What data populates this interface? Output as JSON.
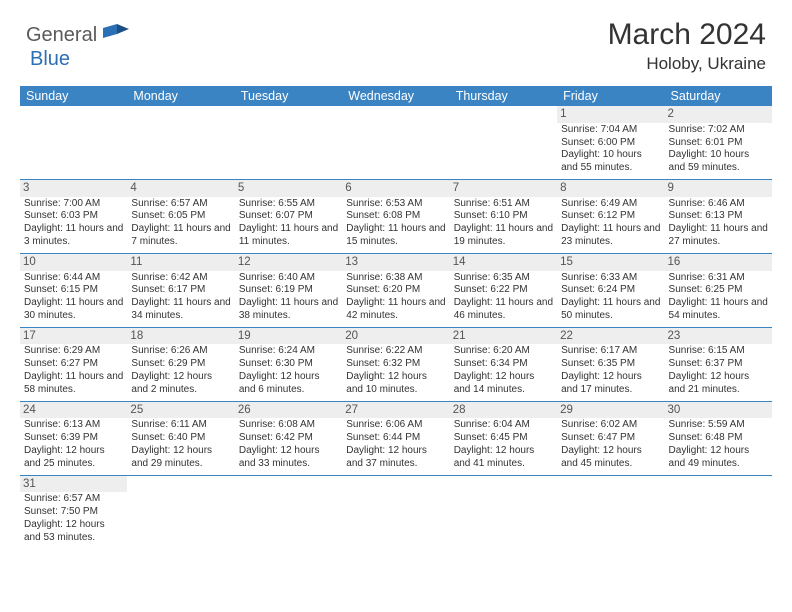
{
  "brand": {
    "part1": "General",
    "part2": "Blue"
  },
  "title": "March 2024",
  "location": "Holoby, Ukraine",
  "colors": {
    "header_bg": "#3b84c4",
    "header_text": "#ffffff",
    "daynum_bg": "#eeeeee",
    "row_border": "#3b84c4",
    "brand_gray": "#5a5a5a",
    "brand_blue": "#2b6fb5",
    "page_bg": "#ffffff",
    "text": "#333333"
  },
  "day_headers": [
    "Sunday",
    "Monday",
    "Tuesday",
    "Wednesday",
    "Thursday",
    "Friday",
    "Saturday"
  ],
  "weeks": [
    [
      {
        "n": "",
        "sr": "",
        "ss": "",
        "dl": ""
      },
      {
        "n": "",
        "sr": "",
        "ss": "",
        "dl": ""
      },
      {
        "n": "",
        "sr": "",
        "ss": "",
        "dl": ""
      },
      {
        "n": "",
        "sr": "",
        "ss": "",
        "dl": ""
      },
      {
        "n": "",
        "sr": "",
        "ss": "",
        "dl": ""
      },
      {
        "n": "1",
        "sr": "Sunrise: 7:04 AM",
        "ss": "Sunset: 6:00 PM",
        "dl": "Daylight: 10 hours and 55 minutes."
      },
      {
        "n": "2",
        "sr": "Sunrise: 7:02 AM",
        "ss": "Sunset: 6:01 PM",
        "dl": "Daylight: 10 hours and 59 minutes."
      }
    ],
    [
      {
        "n": "3",
        "sr": "Sunrise: 7:00 AM",
        "ss": "Sunset: 6:03 PM",
        "dl": "Daylight: 11 hours and 3 minutes."
      },
      {
        "n": "4",
        "sr": "Sunrise: 6:57 AM",
        "ss": "Sunset: 6:05 PM",
        "dl": "Daylight: 11 hours and 7 minutes."
      },
      {
        "n": "5",
        "sr": "Sunrise: 6:55 AM",
        "ss": "Sunset: 6:07 PM",
        "dl": "Daylight: 11 hours and 11 minutes."
      },
      {
        "n": "6",
        "sr": "Sunrise: 6:53 AM",
        "ss": "Sunset: 6:08 PM",
        "dl": "Daylight: 11 hours and 15 minutes."
      },
      {
        "n": "7",
        "sr": "Sunrise: 6:51 AM",
        "ss": "Sunset: 6:10 PM",
        "dl": "Daylight: 11 hours and 19 minutes."
      },
      {
        "n": "8",
        "sr": "Sunrise: 6:49 AM",
        "ss": "Sunset: 6:12 PM",
        "dl": "Daylight: 11 hours and 23 minutes."
      },
      {
        "n": "9",
        "sr": "Sunrise: 6:46 AM",
        "ss": "Sunset: 6:13 PM",
        "dl": "Daylight: 11 hours and 27 minutes."
      }
    ],
    [
      {
        "n": "10",
        "sr": "Sunrise: 6:44 AM",
        "ss": "Sunset: 6:15 PM",
        "dl": "Daylight: 11 hours and 30 minutes."
      },
      {
        "n": "11",
        "sr": "Sunrise: 6:42 AM",
        "ss": "Sunset: 6:17 PM",
        "dl": "Daylight: 11 hours and 34 minutes."
      },
      {
        "n": "12",
        "sr": "Sunrise: 6:40 AM",
        "ss": "Sunset: 6:19 PM",
        "dl": "Daylight: 11 hours and 38 minutes."
      },
      {
        "n": "13",
        "sr": "Sunrise: 6:38 AM",
        "ss": "Sunset: 6:20 PM",
        "dl": "Daylight: 11 hours and 42 minutes."
      },
      {
        "n": "14",
        "sr": "Sunrise: 6:35 AM",
        "ss": "Sunset: 6:22 PM",
        "dl": "Daylight: 11 hours and 46 minutes."
      },
      {
        "n": "15",
        "sr": "Sunrise: 6:33 AM",
        "ss": "Sunset: 6:24 PM",
        "dl": "Daylight: 11 hours and 50 minutes."
      },
      {
        "n": "16",
        "sr": "Sunrise: 6:31 AM",
        "ss": "Sunset: 6:25 PM",
        "dl": "Daylight: 11 hours and 54 minutes."
      }
    ],
    [
      {
        "n": "17",
        "sr": "Sunrise: 6:29 AM",
        "ss": "Sunset: 6:27 PM",
        "dl": "Daylight: 11 hours and 58 minutes."
      },
      {
        "n": "18",
        "sr": "Sunrise: 6:26 AM",
        "ss": "Sunset: 6:29 PM",
        "dl": "Daylight: 12 hours and 2 minutes."
      },
      {
        "n": "19",
        "sr": "Sunrise: 6:24 AM",
        "ss": "Sunset: 6:30 PM",
        "dl": "Daylight: 12 hours and 6 minutes."
      },
      {
        "n": "20",
        "sr": "Sunrise: 6:22 AM",
        "ss": "Sunset: 6:32 PM",
        "dl": "Daylight: 12 hours and 10 minutes."
      },
      {
        "n": "21",
        "sr": "Sunrise: 6:20 AM",
        "ss": "Sunset: 6:34 PM",
        "dl": "Daylight: 12 hours and 14 minutes."
      },
      {
        "n": "22",
        "sr": "Sunrise: 6:17 AM",
        "ss": "Sunset: 6:35 PM",
        "dl": "Daylight: 12 hours and 17 minutes."
      },
      {
        "n": "23",
        "sr": "Sunrise: 6:15 AM",
        "ss": "Sunset: 6:37 PM",
        "dl": "Daylight: 12 hours and 21 minutes."
      }
    ],
    [
      {
        "n": "24",
        "sr": "Sunrise: 6:13 AM",
        "ss": "Sunset: 6:39 PM",
        "dl": "Daylight: 12 hours and 25 minutes."
      },
      {
        "n": "25",
        "sr": "Sunrise: 6:11 AM",
        "ss": "Sunset: 6:40 PM",
        "dl": "Daylight: 12 hours and 29 minutes."
      },
      {
        "n": "26",
        "sr": "Sunrise: 6:08 AM",
        "ss": "Sunset: 6:42 PM",
        "dl": "Daylight: 12 hours and 33 minutes."
      },
      {
        "n": "27",
        "sr": "Sunrise: 6:06 AM",
        "ss": "Sunset: 6:44 PM",
        "dl": "Daylight: 12 hours and 37 minutes."
      },
      {
        "n": "28",
        "sr": "Sunrise: 6:04 AM",
        "ss": "Sunset: 6:45 PM",
        "dl": "Daylight: 12 hours and 41 minutes."
      },
      {
        "n": "29",
        "sr": "Sunrise: 6:02 AM",
        "ss": "Sunset: 6:47 PM",
        "dl": "Daylight: 12 hours and 45 minutes."
      },
      {
        "n": "30",
        "sr": "Sunrise: 5:59 AM",
        "ss": "Sunset: 6:48 PM",
        "dl": "Daylight: 12 hours and 49 minutes."
      }
    ],
    [
      {
        "n": "31",
        "sr": "Sunrise: 6:57 AM",
        "ss": "Sunset: 7:50 PM",
        "dl": "Daylight: 12 hours and 53 minutes."
      },
      {
        "n": "",
        "sr": "",
        "ss": "",
        "dl": ""
      },
      {
        "n": "",
        "sr": "",
        "ss": "",
        "dl": ""
      },
      {
        "n": "",
        "sr": "",
        "ss": "",
        "dl": ""
      },
      {
        "n": "",
        "sr": "",
        "ss": "",
        "dl": ""
      },
      {
        "n": "",
        "sr": "",
        "ss": "",
        "dl": ""
      },
      {
        "n": "",
        "sr": "",
        "ss": "",
        "dl": ""
      }
    ]
  ]
}
